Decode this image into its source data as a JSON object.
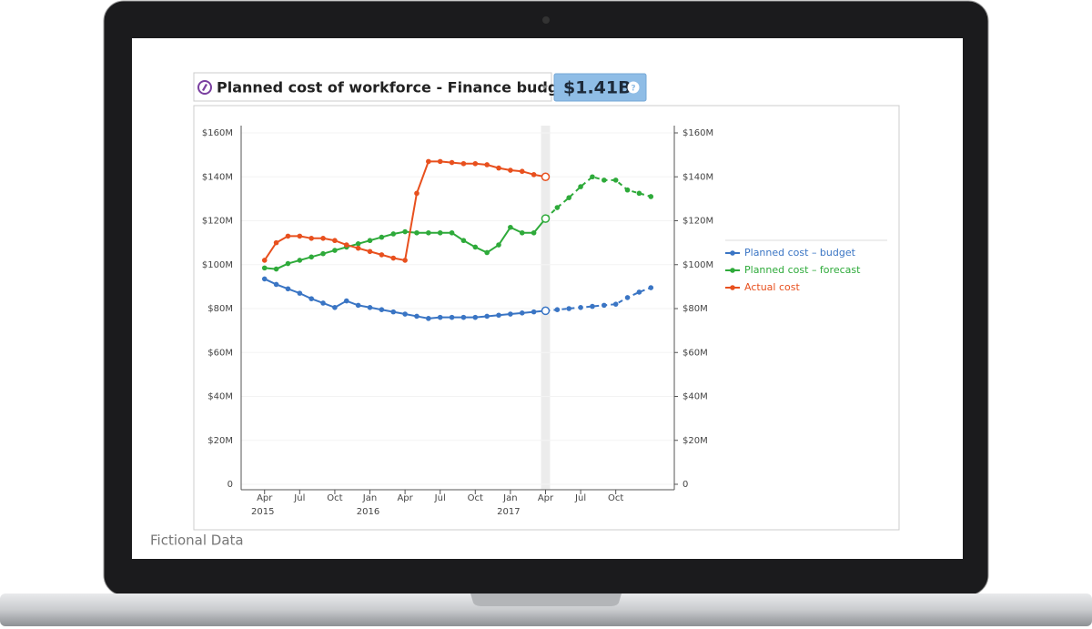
{
  "chart_data": {
    "type": "line",
    "title": "Planned cost of workforce - Finance budget",
    "headline_value": "$1.41B",
    "note": "Fictional Data",
    "x": [
      "2015-04",
      "2015-05",
      "2015-06",
      "2015-07",
      "2015-08",
      "2015-09",
      "2015-10",
      "2015-11",
      "2015-12",
      "2016-01",
      "2016-02",
      "2016-03",
      "2016-04",
      "2016-05",
      "2016-06",
      "2016-07",
      "2016-08",
      "2016-09",
      "2016-10",
      "2016-11",
      "2016-12",
      "2017-01",
      "2017-02",
      "2017-03",
      "2017-04",
      "2017-05",
      "2017-06",
      "2017-07",
      "2017-08",
      "2017-09",
      "2017-10",
      "2017-11",
      "2017-12",
      "2018-01"
    ],
    "xlim": [
      "2015-02",
      "2018-03"
    ],
    "xticks": [
      {
        "value": "2015-04",
        "label": "Apr",
        "year": "2015"
      },
      {
        "value": "2015-07",
        "label": "Jul"
      },
      {
        "value": "2015-10",
        "label": "Oct"
      },
      {
        "value": "2016-01",
        "label": "Jan",
        "year": "2016"
      },
      {
        "value": "2016-04",
        "label": "Apr"
      },
      {
        "value": "2016-07",
        "label": "Jul"
      },
      {
        "value": "2016-10",
        "label": "Oct"
      },
      {
        "value": "2017-01",
        "label": "Jan",
        "year": "2017"
      },
      {
        "value": "2017-04",
        "label": "Apr"
      },
      {
        "value": "2017-07",
        "label": "Jul"
      },
      {
        "value": "2017-10",
        "label": "Oct"
      }
    ],
    "ylim": [
      0,
      160
    ],
    "yticks": [
      0,
      {
        "value": 20,
        "label": "$20M"
      },
      {
        "value": 40,
        "label": "$40M"
      },
      {
        "value": 60,
        "label": "$60M"
      },
      {
        "value": 80,
        "label": "$80M"
      },
      {
        "value": 100,
        "label": "$100M"
      },
      {
        "value": 120,
        "label": "$120M"
      },
      {
        "value": 140,
        "label": "$140M"
      },
      {
        "value": 160,
        "label": "$160M"
      }
    ],
    "y2lim": [
      0,
      160
    ],
    "y2ticks": [
      0,
      {
        "value": 20,
        "label": "$20M"
      },
      {
        "value": 40,
        "label": "$40M"
      },
      {
        "value": 60,
        "label": "$60M"
      },
      {
        "value": 80,
        "label": "$80M"
      },
      {
        "value": 100,
        "label": "$100M"
      },
      {
        "value": 120,
        "label": "$120M"
      },
      {
        "value": 140,
        "label": "$140M"
      },
      {
        "value": 160,
        "label": "$160M"
      }
    ],
    "grid": true,
    "legend": "right",
    "highlight_x": "2017-04",
    "series": [
      {
        "name": "Planned cost – budget",
        "color": "#3a75c4",
        "values": [
          93.5,
          91,
          89,
          87,
          84.5,
          82.5,
          80.5,
          83.5,
          81.5,
          80.5,
          79.5,
          78.5,
          77.5,
          76.5,
          75.5,
          76,
          76,
          76,
          76,
          76.5,
          77,
          77.5,
          78,
          78.5,
          79,
          79.5,
          80,
          80.5,
          81,
          81.5,
          82,
          85,
          87.5,
          89.5
        ]
      },
      {
        "name": "Planned cost – forecast",
        "color": "#2eaa3a",
        "values": [
          98.5,
          98,
          100.5,
          102,
          103.5,
          105,
          106.5,
          108,
          109.5,
          111,
          112.5,
          114,
          115,
          114.5,
          114.5,
          114.5,
          114.5,
          111,
          108,
          105.5,
          109,
          117,
          114.5,
          114.5,
          121,
          126,
          130.5,
          135.5,
          140,
          138.5,
          138.5,
          134,
          132.5,
          131
        ]
      },
      {
        "name": "Actual cost",
        "color": "#e8501e",
        "values": [
          102,
          110,
          113,
          113,
          112,
          112,
          111,
          109,
          107.5,
          106,
          104.5,
          103,
          102,
          132.5,
          147,
          147,
          146.5,
          146,
          146,
          145.5,
          144,
          143,
          142.5,
          141,
          140,
          null,
          null,
          null,
          null,
          null,
          null,
          null,
          null,
          null
        ]
      }
    ]
  }
}
